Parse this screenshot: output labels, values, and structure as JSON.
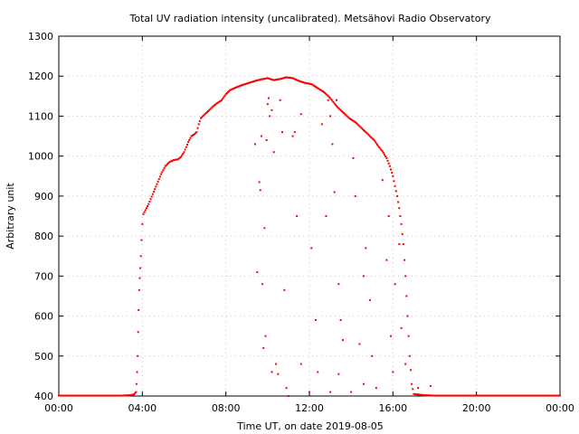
{
  "chart_data": {
    "type": "scatter",
    "title": "Total UV radiation intensity (uncalibrated). Metsähovi Radio Observatory",
    "xlabel": "Time UT, on date 2019-08-05",
    "ylabel": "Arbitrary unit",
    "xlim": [
      "00:00",
      "24:00"
    ],
    "ylim": [
      400,
      1300
    ],
    "x_unit": "hours UT",
    "x_ticks": [
      {
        "value": 0,
        "label": "00:00"
      },
      {
        "value": 4,
        "label": "04:00"
      },
      {
        "value": 8,
        "label": "08:00"
      },
      {
        "value": 12,
        "label": "12:00"
      },
      {
        "value": 16,
        "label": "16:00"
      },
      {
        "value": 20,
        "label": "20:00"
      },
      {
        "value": 24,
        "label": "00:00"
      }
    ],
    "y_ticks": [
      400,
      500,
      600,
      700,
      800,
      900,
      1000,
      1100,
      1200,
      1300
    ],
    "grid": true,
    "marker_color": "#ff0000",
    "series": [
      {
        "points": [
          [
            0.0,
            401
          ],
          [
            0.5,
            401
          ],
          [
            1.0,
            401
          ],
          [
            1.5,
            401
          ],
          [
            2.0,
            401
          ],
          [
            2.5,
            401
          ],
          [
            3.0,
            401
          ],
          [
            3.4,
            402
          ],
          [
            3.6,
            404
          ],
          [
            3.7,
            410
          ],
          [
            3.72,
            430
          ],
          [
            3.75,
            460
          ],
          [
            3.78,
            500
          ],
          [
            3.8,
            560
          ],
          [
            3.82,
            615
          ],
          [
            3.85,
            665
          ],
          [
            3.88,
            695
          ],
          [
            3.9,
            720
          ],
          [
            3.93,
            750
          ],
          [
            3.96,
            790
          ],
          [
            4.0,
            830
          ],
          [
            4.05,
            855
          ],
          [
            4.15,
            865
          ],
          [
            4.3,
            880
          ],
          [
            4.5,
            905
          ],
          [
            4.7,
            930
          ],
          [
            4.9,
            955
          ],
          [
            5.1,
            975
          ],
          [
            5.3,
            985
          ],
          [
            5.5,
            990
          ],
          [
            5.7,
            992
          ],
          [
            5.85,
            998
          ],
          [
            6.0,
            1010
          ],
          [
            6.2,
            1035
          ],
          [
            6.35,
            1050
          ],
          [
            6.5,
            1055
          ],
          [
            6.6,
            1060
          ],
          [
            6.7,
            1080
          ],
          [
            6.8,
            1095
          ],
          [
            7.0,
            1105
          ],
          [
            7.2,
            1115
          ],
          [
            7.4,
            1125
          ],
          [
            7.6,
            1133
          ],
          [
            7.8,
            1140
          ],
          [
            8.0,
            1155
          ],
          [
            8.2,
            1165
          ],
          [
            8.5,
            1172
          ],
          [
            8.8,
            1178
          ],
          [
            9.1,
            1183
          ],
          [
            9.4,
            1188
          ],
          [
            9.7,
            1192
          ],
          [
            10.0,
            1195
          ],
          [
            10.3,
            1190
          ],
          [
            10.6,
            1193
          ],
          [
            10.9,
            1197
          ],
          [
            11.2,
            1195
          ],
          [
            11.5,
            1188
          ],
          [
            11.8,
            1183
          ],
          [
            12.1,
            1180
          ],
          [
            12.4,
            1170
          ],
          [
            12.7,
            1160
          ],
          [
            13.0,
            1145
          ],
          [
            13.3,
            1125
          ],
          [
            13.6,
            1110
          ],
          [
            13.9,
            1095
          ],
          [
            14.2,
            1085
          ],
          [
            14.5,
            1070
          ],
          [
            14.8,
            1055
          ],
          [
            15.1,
            1040
          ],
          [
            15.3,
            1025
          ],
          [
            15.5,
            1012
          ],
          [
            15.7,
            995
          ],
          [
            15.85,
            975
          ],
          [
            16.0,
            950
          ],
          [
            16.1,
            925
          ],
          [
            16.2,
            900
          ],
          [
            16.3,
            870
          ],
          [
            16.4,
            830
          ],
          [
            16.5,
            780
          ],
          [
            16.6,
            700
          ],
          [
            16.7,
            600
          ],
          [
            16.8,
            500
          ],
          [
            16.9,
            430
          ],
          [
            17.0,
            405
          ],
          [
            17.5,
            402
          ],
          [
            18.0,
            401
          ],
          [
            18.5,
            401
          ],
          [
            19.0,
            401
          ],
          [
            20.0,
            401
          ],
          [
            21.0,
            401
          ],
          [
            22.0,
            401
          ],
          [
            23.0,
            401
          ],
          [
            24.0,
            401
          ]
        ]
      },
      {
        "points": [
          [
            9.4,
            1030
          ],
          [
            9.5,
            710
          ],
          [
            9.6,
            935
          ],
          [
            9.65,
            915
          ],
          [
            9.7,
            1050
          ],
          [
            9.75,
            680
          ],
          [
            9.8,
            520
          ],
          [
            9.85,
            820
          ],
          [
            9.9,
            550
          ],
          [
            9.95,
            1040
          ],
          [
            10.0,
            1130
          ],
          [
            10.05,
            1145
          ],
          [
            10.1,
            1100
          ],
          [
            10.2,
            1115
          ],
          [
            10.3,
            1010
          ],
          [
            10.4,
            480
          ],
          [
            10.5,
            455
          ],
          [
            10.6,
            1140
          ],
          [
            10.7,
            1060
          ],
          [
            10.8,
            665
          ],
          [
            11.0,
            400
          ],
          [
            11.2,
            1050
          ],
          [
            11.3,
            1060
          ],
          [
            11.4,
            850
          ],
          [
            11.6,
            1105
          ],
          [
            12.0,
            410
          ],
          [
            12.1,
            770
          ],
          [
            12.3,
            590
          ],
          [
            12.6,
            1080
          ],
          [
            12.8,
            850
          ],
          [
            12.9,
            1140
          ],
          [
            13.0,
            1100
          ],
          [
            13.1,
            1030
          ],
          [
            13.2,
            910
          ],
          [
            13.3,
            1140
          ],
          [
            13.4,
            680
          ],
          [
            13.5,
            590
          ],
          [
            13.6,
            540
          ],
          [
            14.1,
            995
          ],
          [
            14.2,
            900
          ],
          [
            14.4,
            530
          ],
          [
            14.6,
            700
          ],
          [
            14.7,
            770
          ],
          [
            14.9,
            640
          ],
          [
            15.0,
            500
          ],
          [
            15.5,
            940
          ],
          [
            15.7,
            740
          ],
          [
            15.8,
            850
          ],
          [
            15.9,
            550
          ],
          [
            16.0,
            460
          ],
          [
            16.1,
            680
          ],
          [
            16.3,
            780
          ],
          [
            16.4,
            570
          ],
          [
            16.6,
            480
          ],
          [
            10.2,
            460
          ],
          [
            10.9,
            420
          ],
          [
            11.6,
            480
          ],
          [
            12.4,
            460
          ],
          [
            13.0,
            410
          ],
          [
            13.4,
            455
          ],
          [
            14.0,
            410
          ],
          [
            14.6,
            430
          ],
          [
            15.2,
            420
          ],
          [
            17.2,
            420
          ],
          [
            17.8,
            425
          ]
        ]
      }
    ]
  }
}
